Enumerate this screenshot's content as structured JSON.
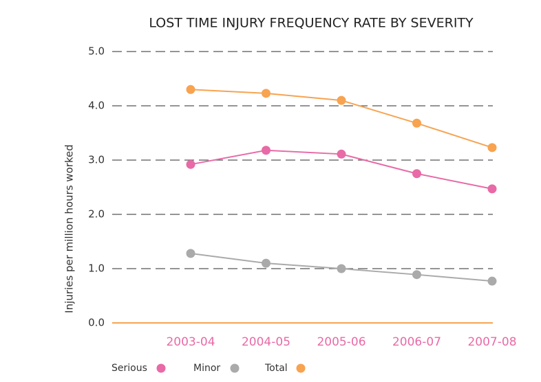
{
  "chart_data": {
    "type": "line",
    "title": "LOST TIME INJURY FREQUENCY RATE BY SEVERITY",
    "y_label": "Injuries per million hours worked",
    "categories": [
      "2003-04",
      "2004-05",
      "2005-06",
      "2006-07",
      "2007-08"
    ],
    "series": [
      {
        "name": "Serious",
        "color": "#e86aa6",
        "values": [
          2.92,
          3.18,
          3.11,
          2.75,
          2.47
        ]
      },
      {
        "name": "Minor",
        "color": "#aaaaaa",
        "values": [
          1.28,
          1.1,
          1.0,
          0.89,
          0.77
        ]
      },
      {
        "name": "Total",
        "color": "#f7a350",
        "values": [
          4.3,
          4.23,
          4.1,
          3.68,
          3.23
        ]
      }
    ],
    "ylim": [
      0,
      5
    ],
    "yticks": [
      {
        "value": 0,
        "label": "0.0"
      },
      {
        "value": 1,
        "label": "1.0"
      },
      {
        "value": 2,
        "label": "2.0"
      },
      {
        "value": 3,
        "label": "3.0"
      },
      {
        "value": 4,
        "label": "4.0"
      },
      {
        "value": 5,
        "label": "5.0"
      }
    ],
    "grid": true
  }
}
